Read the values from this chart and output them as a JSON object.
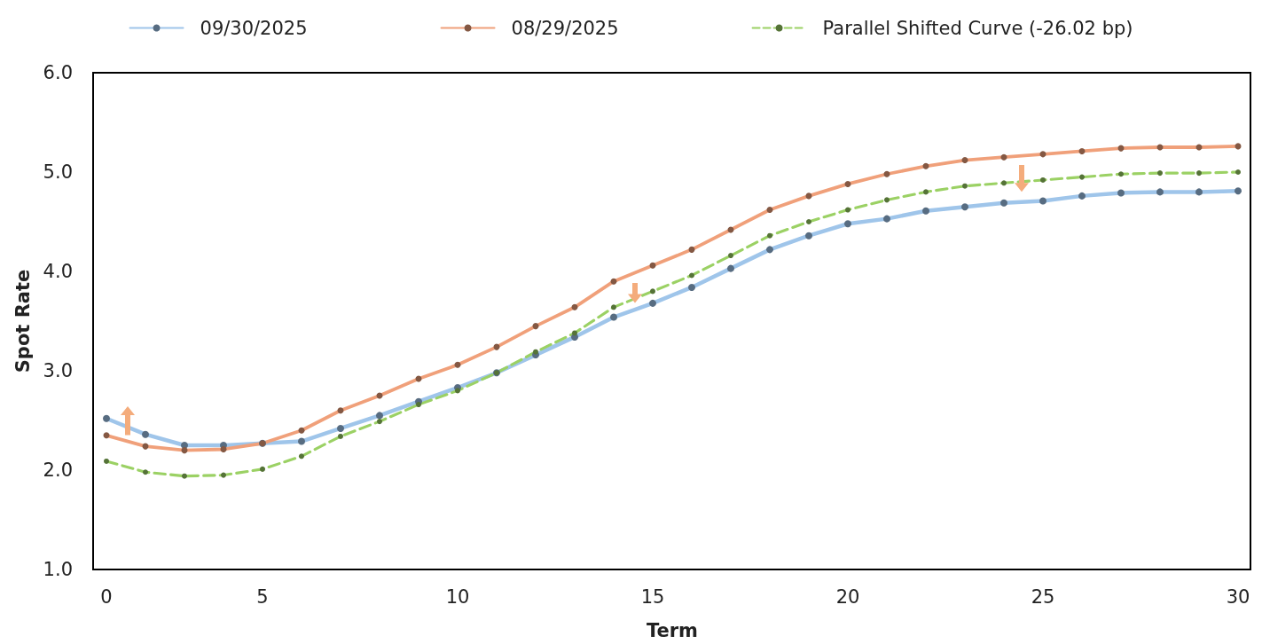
{
  "chart_data": {
    "type": "line",
    "xlabel": "Term",
    "ylabel": "Spot Rate",
    "categories": [
      "0",
      null,
      null,
      null,
      "5",
      null,
      null,
      null,
      null,
      "10",
      null,
      null,
      null,
      null,
      "15",
      null,
      null,
      null,
      null,
      "20",
      null,
      null,
      null,
      null,
      "25",
      null,
      null,
      null,
      null,
      "30"
    ],
    "series": [
      {
        "name": "09/30/2025",
        "color": "#9fc5ea",
        "values": [
          2.52,
          2.36,
          2.25,
          2.25,
          2.27,
          2.29,
          2.42,
          2.55,
          2.69,
          2.83,
          2.98,
          3.16,
          3.34,
          3.54,
          3.68,
          3.84,
          4.03,
          4.22,
          4.36,
          4.48,
          4.53,
          4.61,
          4.65,
          4.69,
          4.71,
          4.76,
          4.79,
          4.8,
          4.8,
          4.81
        ]
      },
      {
        "name": "08/29/2025",
        "color": "#f0a07a",
        "values": [
          2.35,
          2.24,
          2.2,
          2.21,
          2.27,
          2.4,
          2.6,
          2.75,
          2.92,
          3.06,
          3.24,
          3.45,
          3.64,
          3.9,
          4.06,
          4.22,
          4.42,
          4.62,
          4.76,
          4.88,
          4.98,
          5.06,
          5.12,
          5.15,
          5.18,
          5.21,
          5.24,
          5.25,
          5.25,
          5.26
        ]
      },
      {
        "name": "Parallel Shifted Curve (-26.02 bp)",
        "color": "#9bd164",
        "line_style": "dashed",
        "values": [
          2.09,
          1.98,
          1.94,
          1.95,
          2.01,
          2.14,
          2.34,
          2.49,
          2.66,
          2.8,
          2.98,
          3.19,
          3.38,
          3.64,
          3.8,
          3.96,
          4.16,
          4.36,
          4.5,
          4.62,
          4.72,
          4.8,
          4.86,
          4.89,
          4.92,
          4.95,
          4.98,
          4.99,
          4.99,
          5.0
        ]
      }
    ],
    "ylim": [
      1,
      6
    ],
    "yticks": [
      {
        "value": 1,
        "label": "1.0"
      },
      {
        "value": 2,
        "label": "2.0"
      },
      {
        "value": 3,
        "label": "3.0"
      },
      {
        "value": 4,
        "label": "4.0"
      },
      {
        "value": 5,
        "label": "5.0"
      },
      {
        "value": 6,
        "label": "6.0"
      }
    ],
    "grid": false,
    "legend": "top",
    "marker": "circle",
    "line_style": "solid"
  }
}
